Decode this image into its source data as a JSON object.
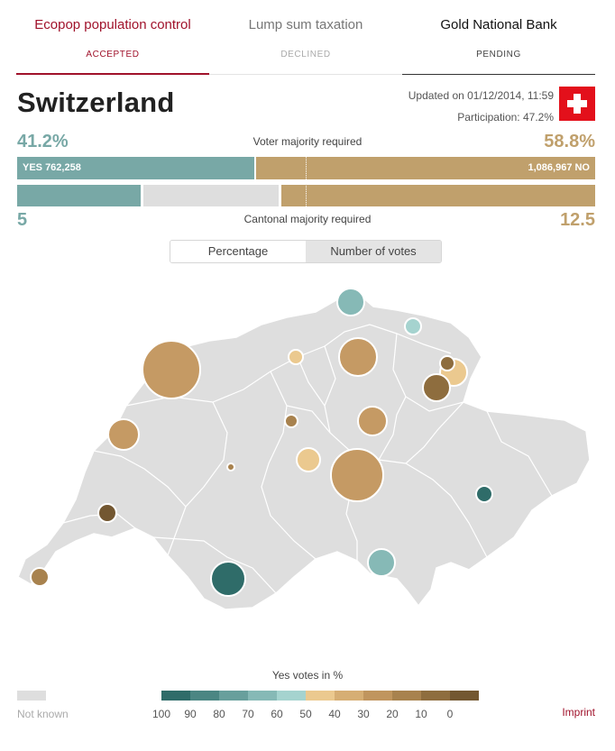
{
  "tabs": [
    {
      "title": "Ecopop population control",
      "status": "ACCEPTED"
    },
    {
      "title": "Lump sum taxation",
      "status": "DECLINED"
    },
    {
      "title": "Gold National Bank",
      "status": "PENDING"
    }
  ],
  "header": {
    "country": "Switzerland",
    "updated": "Updated on 01/12/2014, 11:59",
    "participation": "Participation: 47.2%"
  },
  "voter": {
    "yes_pct": "41.2%",
    "no_pct": "58.8%",
    "label": "Voter majority required",
    "yes_label": "YES 762,258",
    "no_label": "1,086,967 NO",
    "yes_share": 0.412
  },
  "cantonal": {
    "yes_count": "5",
    "no_count": "12.5",
    "label": "Cantonal majority required"
  },
  "toggle": {
    "percentage": "Percentage",
    "votes": "Number of votes"
  },
  "legend": {
    "title": "Yes votes in %",
    "not_known": "Not known",
    "ticks": [
      "100",
      "90",
      "80",
      "70",
      "60",
      "50",
      "40",
      "30",
      "20",
      "10",
      "0"
    ],
    "colors": [
      "#2f6c69",
      "#4b8683",
      "#689f9c",
      "#86b9b6",
      "#a5d3cf",
      "#ebc98f",
      "#d6ae74",
      "#c0955e",
      "#a8824e",
      "#8e6d3e",
      "#735731"
    ]
  },
  "imprint": "Imprint",
  "colors": {
    "accent": "#a0122b",
    "yes": "#78a8a6",
    "no": "#c0a06c",
    "map_fill": "#dedede"
  },
  "cantons": [
    {
      "yes_pct": 36,
      "color": "#c59a64"
    },
    {
      "yes_pct": 74,
      "color": "#86b9b6"
    },
    {
      "yes_pct": 72,
      "color": "#a5d3cf"
    },
    {
      "yes_pct": 45,
      "color": "#ebc98f"
    },
    {
      "yes_pct": 34,
      "color": "#c59a64"
    },
    {
      "yes_pct": 40,
      "color": "#ebc98f"
    },
    {
      "yes_pct": 12,
      "color": "#8e6d3e"
    },
    {
      "yes_pct": 14,
      "color": "#8e6d3e"
    },
    {
      "yes_pct": 32,
      "color": "#c59a64"
    },
    {
      "yes_pct": 24,
      "color": "#a8824e"
    },
    {
      "yes_pct": 36,
      "color": "#c59a64"
    },
    {
      "yes_pct": 24,
      "color": "#a8824e"
    },
    {
      "yes_pct": 22,
      "color": "#a8824e"
    },
    {
      "yes_pct": 44,
      "color": "#ebc98f"
    },
    {
      "yes_pct": 36,
      "color": "#c59a64"
    },
    {
      "yes_pct": 92,
      "color": "#2f6c69"
    },
    {
      "yes_pct": 10,
      "color": "#735731"
    },
    {
      "yes_pct": 90,
      "color": "#2f6c69"
    },
    {
      "yes_pct": 70,
      "color": "#86b9b6"
    },
    {
      "yes_pct": 24,
      "color": "#a8824e"
    }
  ]
}
